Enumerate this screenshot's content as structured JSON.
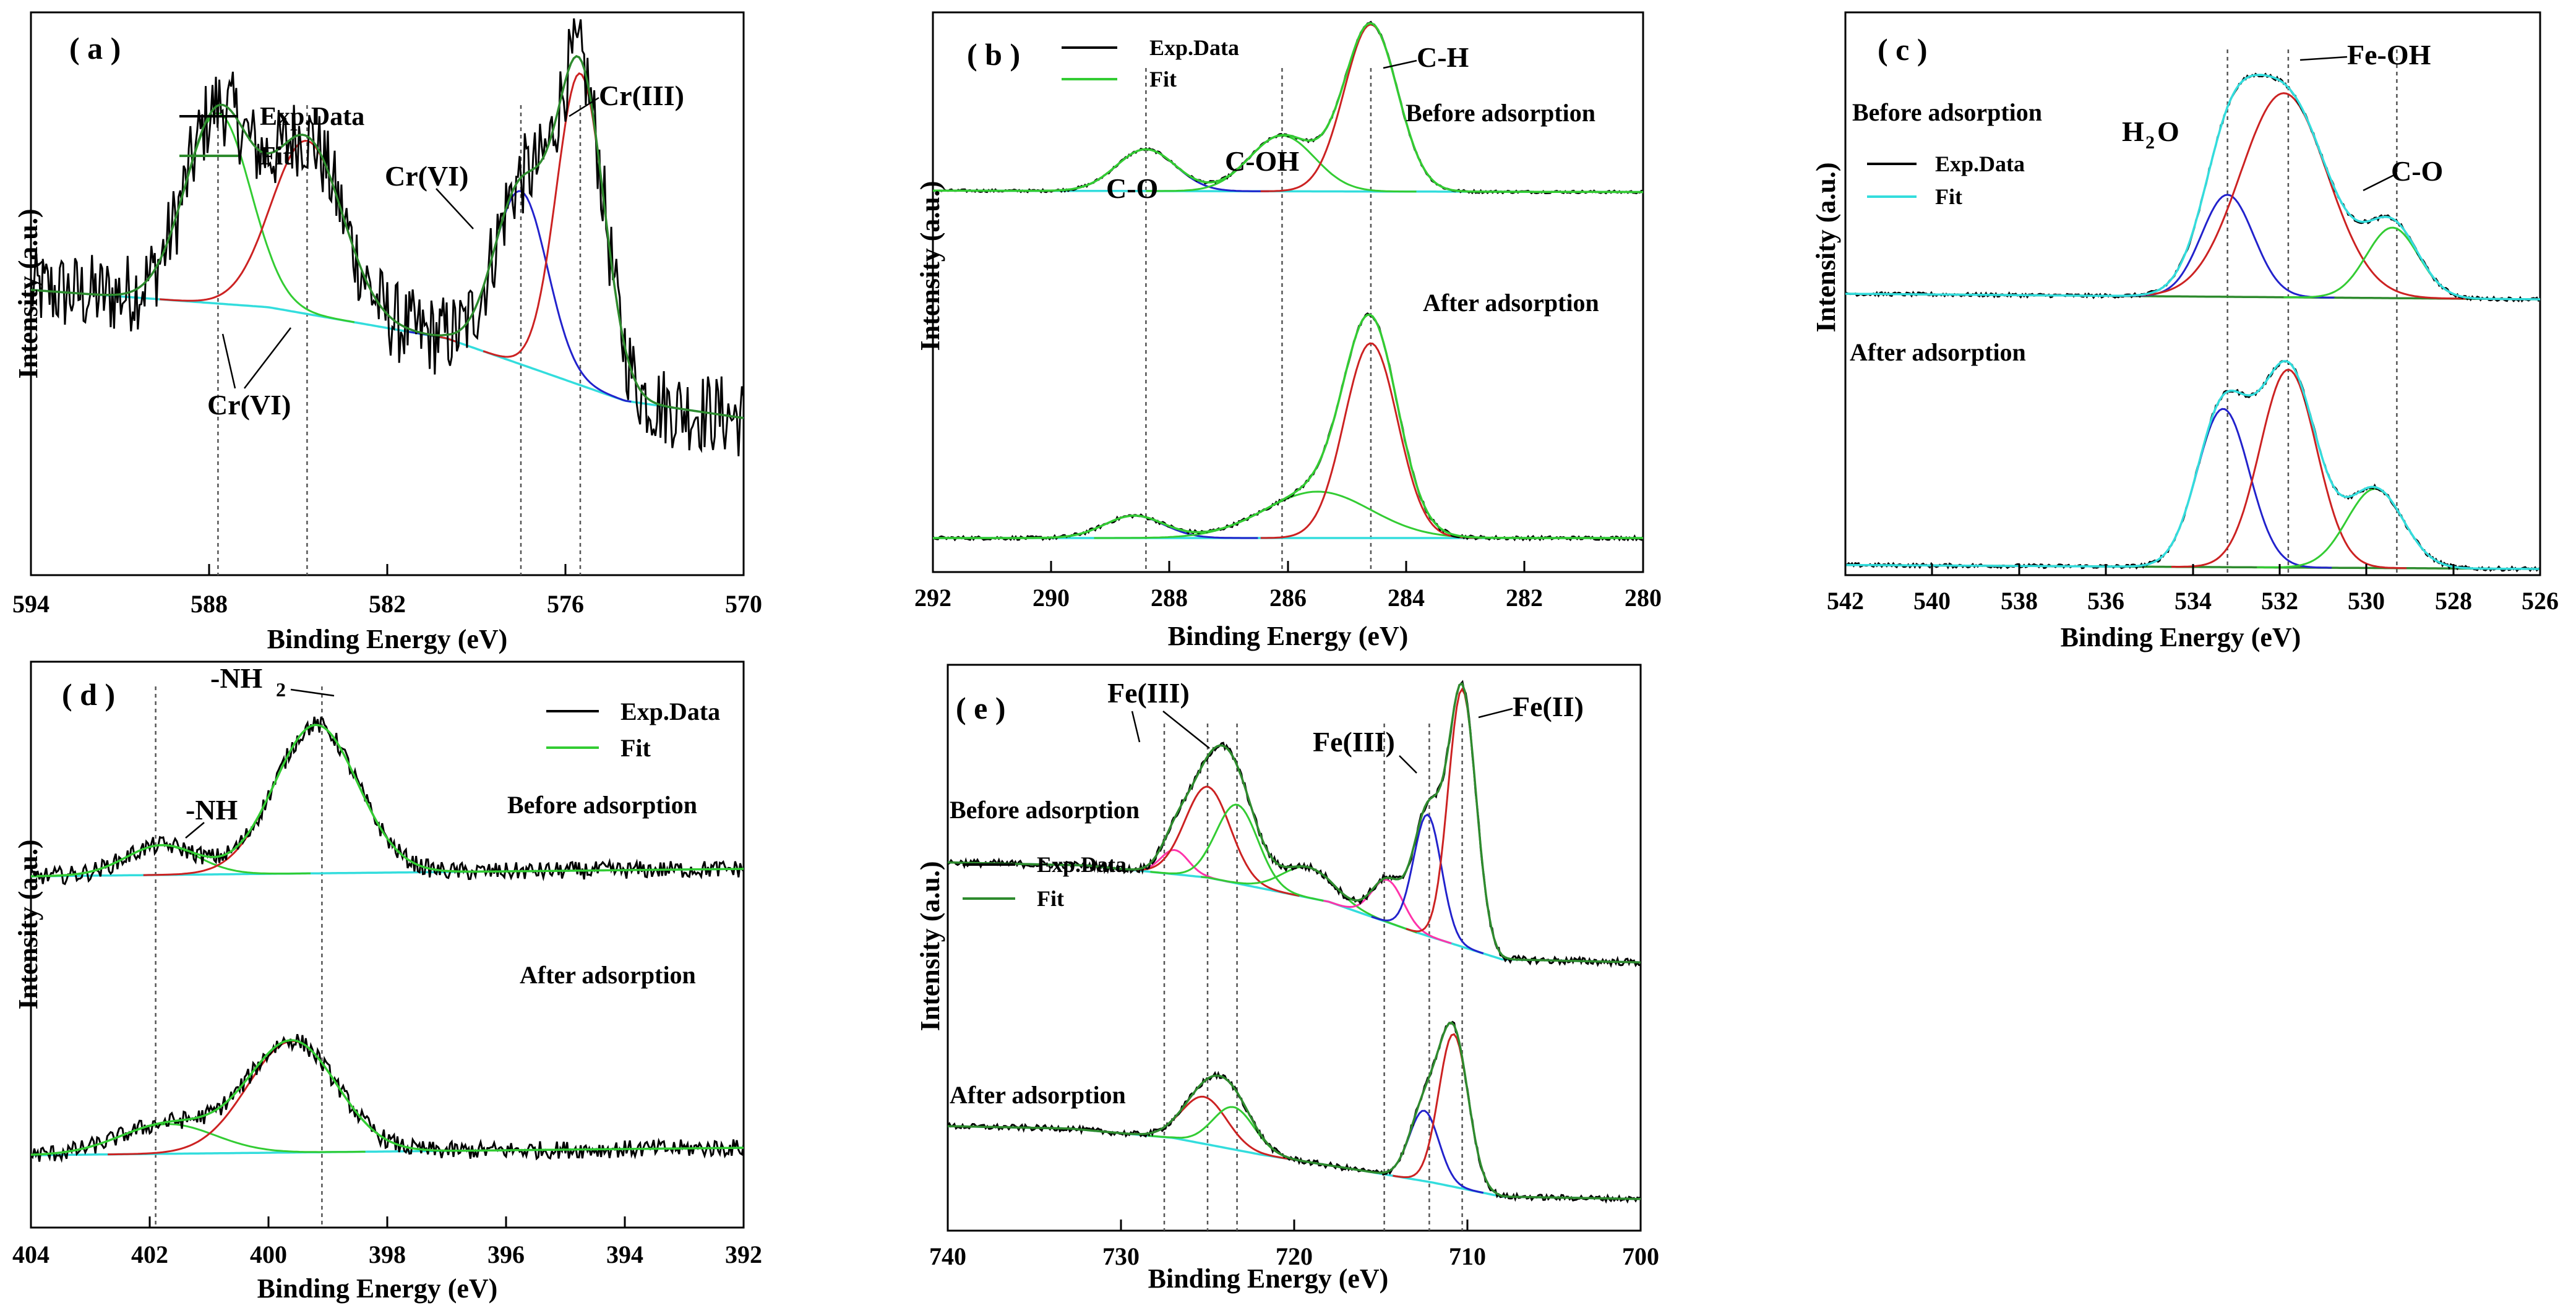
{
  "chart_data": [
    {
      "id": "a",
      "type": "line",
      "panel_label": "( a )",
      "xlabel": "Binding  Energy (eV)",
      "ylabel": "Intensity (a.u.)",
      "xlim": [
        594,
        570
      ],
      "xticks": [
        594,
        588,
        582,
        576,
        570
      ],
      "legend": [
        {
          "label": "Exp.Data",
          "color": "#000000"
        },
        {
          "label": "Fit",
          "color": "#2e8b2e"
        }
      ],
      "annotations": [
        "Cr(III)",
        "Cr(VI)",
        "Cr(VI)"
      ],
      "reference_lines": [
        587.7,
        584.7,
        577.5,
        575.5
      ],
      "baseline": {
        "color": "#33dddd",
        "x": [
          594,
          586,
          580,
          574,
          570
        ],
        "y": [
          0.52,
          0.47,
          0.38,
          0.2,
          0.15
        ]
      },
      "peaks": [
        {
          "center": 587.7,
          "height": 0.55,
          "width": 1.1,
          "color": "#33cc33"
        },
        {
          "center": 584.7,
          "height": 0.5,
          "width": 1.2,
          "color": "#cc2222"
        },
        {
          "center": 577.5,
          "height": 0.5,
          "width": 0.9,
          "color": "#2222cc"
        },
        {
          "center": 575.5,
          "height": 0.9,
          "width": 0.8,
          "color": "#cc2222"
        }
      ],
      "fit_color": "#2e8b2e",
      "noise": 0.12
    },
    {
      "id": "b",
      "type": "line",
      "panel_label": "( b )",
      "xlabel": "Binding  Energy (eV)",
      "ylabel": "Intensity (a.u.)",
      "xlim": [
        292,
        280
      ],
      "xticks": [
        292,
        290,
        288,
        286,
        284,
        282,
        280
      ],
      "legend": [
        {
          "label": "Exp.Data",
          "color": "#000000"
        },
        {
          "label": "Fit",
          "color": "#33cc33"
        }
      ],
      "annotations": [
        "C-O",
        "C-OH",
        "C-H"
      ],
      "conditions": [
        "Before adsorption",
        "After adsorption"
      ],
      "reference_lines": [
        288.4,
        286.1,
        284.6
      ],
      "traces": [
        {
          "condition": "Before adsorption",
          "baseline": {
            "color": "#33dddd",
            "x": [
              292,
              280
            ],
            "y": [
              0.55,
              0.54
            ]
          },
          "peaks": [
            {
              "center": 288.4,
              "height": 0.3,
              "width": 0.5,
              "color": "#2222cc"
            },
            {
              "center": 286.1,
              "height": 0.4,
              "width": 0.55,
              "color": "#33cc33"
            },
            {
              "center": 284.6,
              "height": 1.2,
              "width": 0.45,
              "color": "#cc2222"
            }
          ]
        },
        {
          "condition": "After adsorption",
          "baseline": {
            "color": "#33dddd",
            "x": [
              292,
              280
            ],
            "y": [
              0.0,
              0.0
            ]
          },
          "peaks": [
            {
              "center": 288.6,
              "height": 0.12,
              "width": 0.5,
              "color": "#2222cc"
            },
            {
              "center": 285.5,
              "height": 0.25,
              "width": 0.9,
              "color": "#33cc33"
            },
            {
              "center": 284.6,
              "height": 1.05,
              "width": 0.45,
              "color": "#cc2222"
            }
          ]
        }
      ],
      "noise": 0.01
    },
    {
      "id": "c",
      "type": "line",
      "panel_label": "( c )",
      "xlabel": "Binding  Energy (eV)",
      "ylabel": "Intensity (a.u.)",
      "xlim": [
        542,
        526
      ],
      "xticks": [
        542,
        540,
        538,
        536,
        534,
        532,
        530,
        528,
        526
      ],
      "legend": [
        {
          "label": "Exp.Data",
          "color": "#000000"
        },
        {
          "label": "Fit",
          "color": "#33dddd"
        }
      ],
      "annotations": [
        "H",
        "2",
        "O",
        "Fe-OH",
        "C-O"
      ],
      "conditions": [
        "Before adsorption",
        "After adsorption"
      ],
      "reference_lines": [
        533.2,
        531.8,
        529.3
      ],
      "traces": [
        {
          "condition": "Before adsorption",
          "baseline": {
            "color": "#2e8b2e",
            "x": [
              542,
              526
            ],
            "y": [
              0.55,
              0.52
            ]
          },
          "peaks": [
            {
              "center": 533.2,
              "height": 0.55,
              "width": 0.6,
              "color": "#2222cc"
            },
            {
              "center": 531.9,
              "height": 1.1,
              "width": 1.0,
              "color": "#cc2222"
            },
            {
              "center": 529.4,
              "height": 0.38,
              "width": 0.6,
              "color": "#33cc33"
            }
          ]
        },
        {
          "condition": "After adsorption",
          "baseline": {
            "color": "#2e8b2e",
            "x": [
              542,
              526
            ],
            "y": [
              0.02,
              0.0
            ]
          },
          "peaks": [
            {
              "center": 533.3,
              "height": 0.8,
              "width": 0.6,
              "color": "#2222cc"
            },
            {
              "center": 531.8,
              "height": 1.0,
              "width": 0.65,
              "color": "#cc2222"
            },
            {
              "center": 529.8,
              "height": 0.4,
              "width": 0.65,
              "color": "#33cc33"
            }
          ]
        }
      ],
      "noise": 0.01
    },
    {
      "id": "d",
      "type": "line",
      "panel_label": "( d )",
      "xlabel": "Binding  Energy (eV)",
      "ylabel": "Intensity (a.u.)",
      "xlim": [
        404,
        392
      ],
      "xticks": [
        404,
        402,
        400,
        398,
        396,
        394,
        392
      ],
      "legend": [
        {
          "label": "Exp.Data",
          "color": "#000000"
        },
        {
          "label": "Fit",
          "color": "#33cc33"
        }
      ],
      "annotations": [
        "-NH",
        "2",
        "-NH"
      ],
      "conditions": [
        "Before adsorption",
        "After adsorption"
      ],
      "reference_lines": [
        401.9,
        399.1
      ],
      "traces": [
        {
          "condition": "Before adsorption",
          "baseline": {
            "color": "#33dddd",
            "x": [
              404,
              392
            ],
            "y": [
              0.95,
              1.0
            ]
          },
          "peaks": [
            {
              "center": 401.8,
              "height": 0.2,
              "width": 0.6,
              "color": "#33cc33"
            },
            {
              "center": 399.2,
              "height": 1.0,
              "width": 0.7,
              "color": "#cc2222"
            }
          ]
        },
        {
          "condition": "After adsorption",
          "baseline": {
            "color": "#33dddd",
            "x": [
              404,
              392
            ],
            "y": [
              0.0,
              0.05
            ]
          },
          "peaks": [
            {
              "center": 401.7,
              "height": 0.2,
              "width": 0.8,
              "color": "#33cc33"
            },
            {
              "center": 399.6,
              "height": 0.75,
              "width": 0.75,
              "color": "#cc2222"
            }
          ]
        }
      ],
      "noise": 0.06
    },
    {
      "id": "e",
      "type": "line",
      "panel_label": "( e )",
      "xlabel": "Binding  Energy (eV)",
      "ylabel": "Intensity (a.u.)",
      "xlim": [
        740,
        700
      ],
      "xticks": [
        740,
        730,
        720,
        710,
        700
      ],
      "legend": [
        {
          "label": "Exp.Data",
          "color": "#000000"
        },
        {
          "label": "Fit",
          "color": "#2e8b2e"
        }
      ],
      "annotations": [
        "Fe(III)",
        "Fe(III)",
        "Fe(II)"
      ],
      "conditions": [
        "Before adsorption",
        "After adsorption"
      ],
      "reference_lines": [
        727.5,
        725.0,
        723.3,
        714.8,
        712.2,
        710.3
      ],
      "traces": [
        {
          "condition": "Before adsorption",
          "baseline": {
            "color": "#33dddd",
            "x": [
              740,
              732,
              725,
              718,
              713,
              708,
              700
            ],
            "y": [
              0.95,
              0.94,
              0.9,
              0.82,
              0.72,
              0.63,
              0.62
            ]
          },
          "peaks": [
            {
              "center": 726.9,
              "height": 0.08,
              "width": 0.8,
              "color": "#ff33aa"
            },
            {
              "center": 725.0,
              "height": 0.3,
              "width": 1.3,
              "color": "#cc2222"
            },
            {
              "center": 723.3,
              "height": 0.26,
              "width": 1.2,
              "color": "#33cc33"
            },
            {
              "center": 719.2,
              "height": 0.1,
              "width": 1.5,
              "color": "#33cc33"
            },
            {
              "center": 714.6,
              "height": 0.14,
              "width": 0.9,
              "color": "#ff33aa"
            },
            {
              "center": 712.3,
              "height": 0.4,
              "width": 0.8,
              "color": "#2222cc"
            },
            {
              "center": 710.3,
              "height": 0.85,
              "width": 0.8,
              "color": "#cc2222"
            }
          ]
        },
        {
          "condition": "After adsorption",
          "baseline": {
            "color": "#33dddd",
            "x": [
              740,
              733,
              727,
              722,
              716,
              712,
              708,
              700
            ],
            "y": [
              0.3,
              0.29,
              0.25,
              0.18,
              0.11,
              0.06,
              0.0,
              -0.01
            ]
          },
          "peaks": [
            {
              "center": 725.2,
              "height": 0.2,
              "width": 1.3,
              "color": "#cc2222"
            },
            {
              "center": 723.5,
              "height": 0.18,
              "width": 1.2,
              "color": "#33cc33"
            },
            {
              "center": 712.5,
              "height": 0.3,
              "width": 0.85,
              "color": "#2222cc"
            },
            {
              "center": 710.8,
              "height": 0.65,
              "width": 0.85,
              "color": "#cc2222"
            }
          ]
        }
      ],
      "noise": 0.012
    }
  ]
}
